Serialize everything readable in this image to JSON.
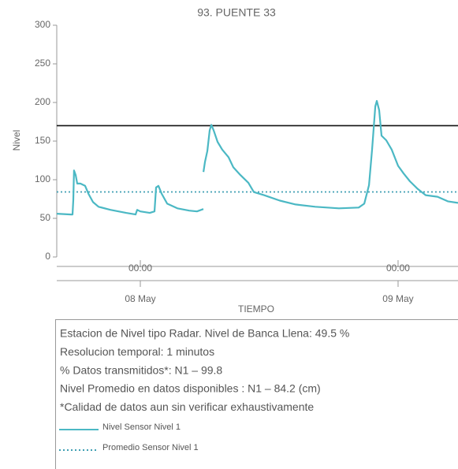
{
  "chart_data": {
    "type": "line",
    "title": "93. PUENTE 33",
    "xlabel": "TIEMPO",
    "ylabel": "Nivel",
    "xlim": [
      -7.78,
      29.58
    ],
    "xticks": [
      {
        "value": 0,
        "label": "00:00"
      },
      {
        "value": 24,
        "label": "00:00"
      }
    ],
    "xticks_secondary": [
      {
        "value": 0,
        "label": "08 May"
      },
      {
        "value": 24,
        "label": "09 May"
      }
    ],
    "ylim": [
      0,
      300
    ],
    "yticks": [
      0,
      50,
      100,
      150,
      200,
      250,
      300
    ],
    "x": [
      -7.78,
      -6.46,
      -6.31,
      -6.24,
      -6.17,
      -6.02,
      -5.87,
      -5.58,
      -5.14,
      -4.84,
      -4.4,
      -3.89,
      -2.79,
      -1.32,
      -0.44,
      -0.29,
      0,
      0.88,
      1.32,
      1.47,
      1.69,
      1.98,
      2.5,
      3.45,
      4.55,
      5.28,
      5.87,
      5.875,
      5.88,
      6.02,
      6.24,
      6.46,
      6.61,
      6.83,
      7.19,
      7.63,
      8.22,
      8.66,
      9.32,
      10.06,
      10.57,
      11.52,
      12.99,
      14.46,
      16.29,
      18.5,
      20.33,
      20.85,
      21.29,
      21.58,
      21.88,
      22.02,
      22.24,
      22.46,
      22.9,
      23.41,
      24.0,
      24.52,
      25.1,
      25.84,
      26.57,
      27.67,
      28.63,
      29.58
    ],
    "series": [
      {
        "name": "Nivel Sensor Nivel 1",
        "color": "#4bb8c4",
        "values": [
          56,
          55,
          55,
          74,
          112,
          106,
          95,
          95,
          92,
          82,
          71,
          65,
          61,
          57,
          55,
          61,
          59,
          57,
          59,
          90,
          92,
          82,
          69,
          63,
          60,
          59,
          62,
          null,
          110,
          123,
          137,
          164,
          171,
          164,
          149,
          139,
          129,
          116,
          106,
          96,
          84,
          80,
          73,
          68,
          65,
          63,
          64,
          69,
          93,
          139,
          195,
          202,
          190,
          157,
          151,
          139,
          118,
          108,
          98,
          88,
          80,
          78,
          72,
          70
        ]
      }
    ],
    "hlines": [
      {
        "value": 170,
        "color": "#111111",
        "style": "solid"
      },
      {
        "name": "Promedio Sensor Nivel 1",
        "value": 84.2,
        "color": "#3f9fb3",
        "style": "dotted"
      }
    ],
    "notes": [
      "Estacion de Nivel tipo Radar. Nivel de Banca Llena: 49.5 %",
      "Resolucion temporal: 1 minutos",
      "% Datos transmitidos*: N1 – 99.8",
      "Nivel Promedio en datos disponibles : N1 – 84.2 (cm)",
      "*Calidad de datos aun sin verificar exhaustivamente"
    ]
  }
}
